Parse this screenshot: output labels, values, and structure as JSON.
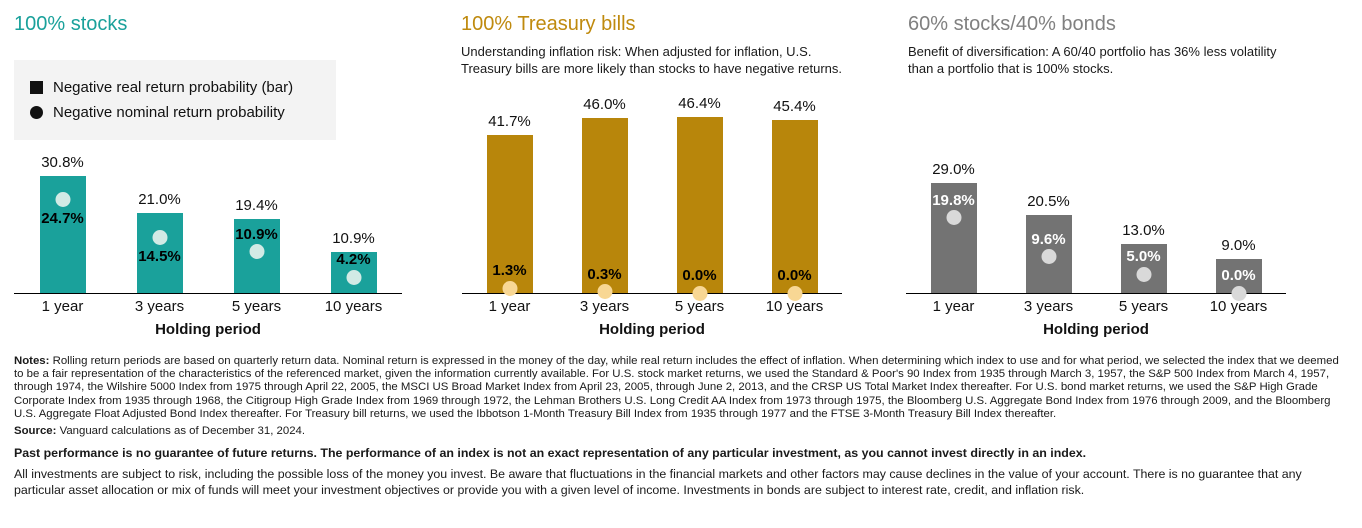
{
  "legend": {
    "items": [
      {
        "swatch": "square",
        "label": "Negative real return probability (bar)"
      },
      {
        "swatch": "circle",
        "label": "Negative nominal return probability"
      }
    ]
  },
  "chart_data": [
    {
      "type": "bar",
      "title": "100% stocks",
      "subtitle": "",
      "categories": [
        "1 year",
        "3 years",
        "5 years",
        "10 years"
      ],
      "series": [
        {
          "name": "Negative real return probability (bar)",
          "values": [
            30.8,
            21.0,
            19.4,
            10.9
          ]
        },
        {
          "name": "Negative nominal return probability",
          "values": [
            24.7,
            14.5,
            10.9,
            4.2
          ]
        }
      ],
      "xlabel": "Holding period",
      "ylim": [
        0,
        48
      ],
      "colors": {
        "title": "#1aa19b",
        "bar": "#1aa19b",
        "dot": "#d2eae5",
        "dot_label": "#000000"
      }
    },
    {
      "type": "bar",
      "title": "100% Treasury bills",
      "subtitle": "Understanding inflation risk: When adjusted for inflation, U.S. Treasury bills are more likely than stocks to have negative returns.",
      "categories": [
        "1 year",
        "3 years",
        "5 years",
        "10 years"
      ],
      "series": [
        {
          "name": "Negative real return probability (bar)",
          "values": [
            41.7,
            46.0,
            46.4,
            45.4
          ]
        },
        {
          "name": "Negative nominal return probability",
          "values": [
            1.3,
            0.3,
            0.0,
            0.0
          ]
        }
      ],
      "xlabel": "Holding period",
      "ylim": [
        0,
        48
      ],
      "colors": {
        "title": "#bf8a0e",
        "bar": "#b8860b",
        "dot": "#f8d794",
        "dot_label": "#000000"
      }
    },
    {
      "type": "bar",
      "title": "60% stocks/40% bonds",
      "subtitle": "Benefit of diversification: A 60/40 portfolio has 36% less volatility than a portfolio that is 100% stocks.",
      "categories": [
        "1 year",
        "3 years",
        "5 years",
        "10 years"
      ],
      "series": [
        {
          "name": "Negative real return probability (bar)",
          "values": [
            29.0,
            20.5,
            13.0,
            9.0
          ]
        },
        {
          "name": "Negative nominal return probability",
          "values": [
            19.8,
            9.6,
            5.0,
            0.0
          ]
        }
      ],
      "xlabel": "Holding period",
      "ylim": [
        0,
        48
      ],
      "colors": {
        "title": "#808080",
        "bar": "#737373",
        "dot": "#d9d9d9",
        "dot_label": "#ffffff"
      }
    }
  ],
  "footer": {
    "notes_label": "Notes:",
    "notes": " Rolling return periods are based on quarterly return data. Nominal return is expressed in the money of the day, while real return includes the effect of inflation. When determining which index to use and for what period, we selected the index that we deemed to be a fair representation of the characteristics of the referenced market, given the information currently available. For U.S. stock market returns, we used the Standard & Poor's 90 Index from 1935 through March 3, 1957, the S&P 500 Index from March 4, 1957, through 1974, the Wilshire 5000 Index from 1975 through April 22, 2005, the MSCI US Broad Market Index from April 23, 2005, through June 2, 2013, and the CRSP US Total Market Index thereafter. For U.S. bond market returns, we used the S&P High Grade Corporate Index from 1935 through 1968, the Citigroup High Grade Index from 1969 through 1972, the Lehman Brothers U.S. Long Credit AA Index from 1973 through 1975, the Bloomberg U.S. Aggregate Bond Index from 1976 through 2009, and the Bloomberg U.S. Aggregate Float Adjusted Bond Index thereafter. For Treasury bill returns, we used the Ibbotson 1-Month Treasury Bill Index from 1935 through 1977 and the FTSE 3-Month Treasury Bill Index thereafter.",
    "source_label": "Source:",
    "source": " Vanguard calculations as of December 31, 2024.",
    "past_performance": "Past performance is no guarantee of future returns. The performance of an index is not an exact representation of any particular investment, as you cannot invest directly in an index.",
    "disclaimer": "All investments are subject to risk, including the possible loss of the money you invest. Be aware that fluctuations in the financial markets and other factors may cause declines in the value of your account. There is no guarantee that any particular asset allocation or mix of funds will meet your investment objectives or provide you with a given level of income. Investments in bonds are subject to interest rate, credit, and inflation risk."
  }
}
